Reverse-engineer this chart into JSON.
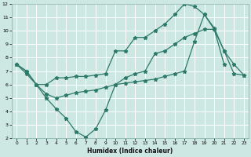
{
  "xlabel": "Humidex (Indice chaleur)",
  "bg_color": "#cde8e3",
  "grid_color": "#b0d4ce",
  "line_color": "#2d7a6b",
  "xlim": [
    -0.5,
    23.5
  ],
  "ylim": [
    2,
    12
  ],
  "xticks": [
    0,
    1,
    2,
    3,
    4,
    5,
    6,
    7,
    8,
    9,
    10,
    11,
    12,
    13,
    14,
    15,
    16,
    17,
    18,
    19,
    20,
    21,
    22,
    23
  ],
  "yticks": [
    2,
    3,
    4,
    5,
    6,
    7,
    8,
    9,
    10,
    11,
    12
  ],
  "line1_x": [
    0,
    1,
    2,
    3,
    4,
    5,
    6,
    7,
    8,
    9,
    10,
    11,
    12,
    13,
    14,
    15,
    16,
    17,
    18,
    19,
    20,
    21
  ],
  "line1_y": [
    7.5,
    7.0,
    6.0,
    5.0,
    4.2,
    3.5,
    2.5,
    2.1,
    2.7,
    4.1,
    6.0,
    6.5,
    6.8,
    7.0,
    8.3,
    8.5,
    9.0,
    9.5,
    9.8,
    10.1,
    10.1,
    7.5
  ],
  "line2_x": [
    0,
    1,
    2,
    3,
    4,
    5,
    6,
    7,
    8,
    9,
    10,
    11,
    12,
    13,
    14,
    15,
    16,
    17,
    18,
    19,
    20,
    21,
    22,
    23
  ],
  "line2_y": [
    7.5,
    6.8,
    6.0,
    5.3,
    5.0,
    5.2,
    5.4,
    5.5,
    5.6,
    5.8,
    6.0,
    6.1,
    6.2,
    6.3,
    6.4,
    6.6,
    6.8,
    7.0,
    9.2,
    11.2,
    10.2,
    8.5,
    6.8,
    6.7
  ],
  "line3_x": [
    0,
    1,
    2,
    3,
    4,
    5,
    6,
    7,
    8,
    9,
    10,
    11,
    12,
    13,
    14,
    15,
    16,
    17,
    18,
    19,
    20,
    21,
    22,
    23
  ],
  "line3_y": [
    7.5,
    7.0,
    6.0,
    6.0,
    6.5,
    6.5,
    6.6,
    6.6,
    6.7,
    6.8,
    8.5,
    8.5,
    9.5,
    9.5,
    10.0,
    10.5,
    11.2,
    12.0,
    11.8,
    11.2,
    10.1,
    8.5,
    7.5,
    6.7
  ]
}
